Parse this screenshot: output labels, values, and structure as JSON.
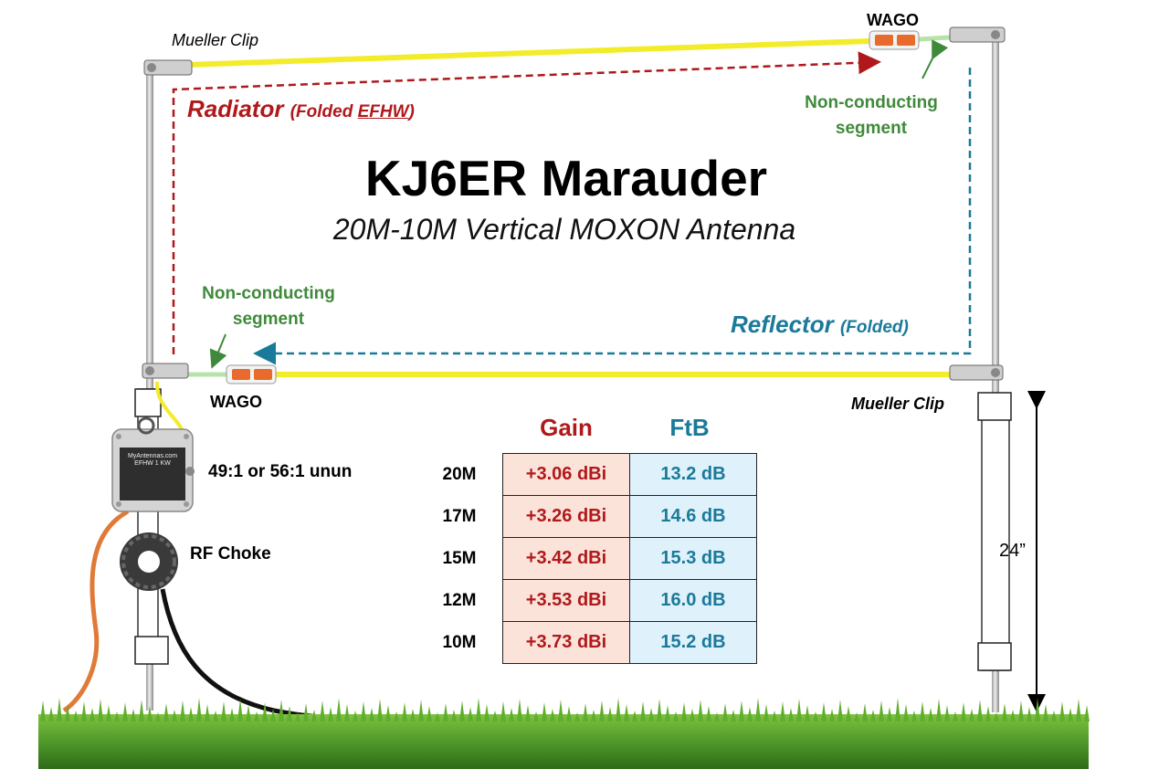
{
  "title": "KJ6ER Marauder",
  "subtitle": "20M-10M Vertical MOXON Antenna",
  "labels": {
    "mueller_clip_top": "Mueller Clip",
    "mueller_clip_bottom": "Mueller Clip",
    "wago_top": "WAGO",
    "wago_bottom": "WAGO",
    "non_conducting_top": [
      "Non-conducting",
      "segment"
    ],
    "non_conducting_bottom": [
      "Non-conducting",
      "segment"
    ],
    "radiator": "Radiator",
    "radiator_note_prefix": "(Folded ",
    "radiator_note_acronym": "EFHW",
    "radiator_note_suffix": ")",
    "reflector": "Reflector",
    "reflector_note": "(Folded)",
    "unun": "49:1 or 56:1 unun",
    "rf_choke": "RF Choke",
    "height": "24”"
  },
  "unun_box": {
    "brand": "MyAntennas.com",
    "line2": "EFHW 1 KW"
  },
  "table": {
    "headers": {
      "gain": "Gain",
      "ftb": "FtB"
    },
    "rows": [
      {
        "band": "20M",
        "gain": "+3.06 dBi",
        "ftb": "13.2 dB"
      },
      {
        "band": "17M",
        "gain": "+3.26 dBi",
        "ftb": "14.6 dB"
      },
      {
        "band": "15M",
        "gain": "+3.42 dBi",
        "ftb": "15.3 dB"
      },
      {
        "band": "12M",
        "gain": "+3.53 dBi",
        "ftb": "16.0 dB"
      },
      {
        "band": "10M",
        "gain": "+3.73 dBi",
        "ftb": "15.2 dB"
      }
    ]
  },
  "colors": {
    "radiator": "#b0191c",
    "reflector": "#1a7a9a",
    "non_conducting": "#3f8a3a",
    "wire": "#f2ec2a",
    "coax": "#111111",
    "ground_wire": "#e07a38",
    "grass": "#4f9a2a"
  }
}
